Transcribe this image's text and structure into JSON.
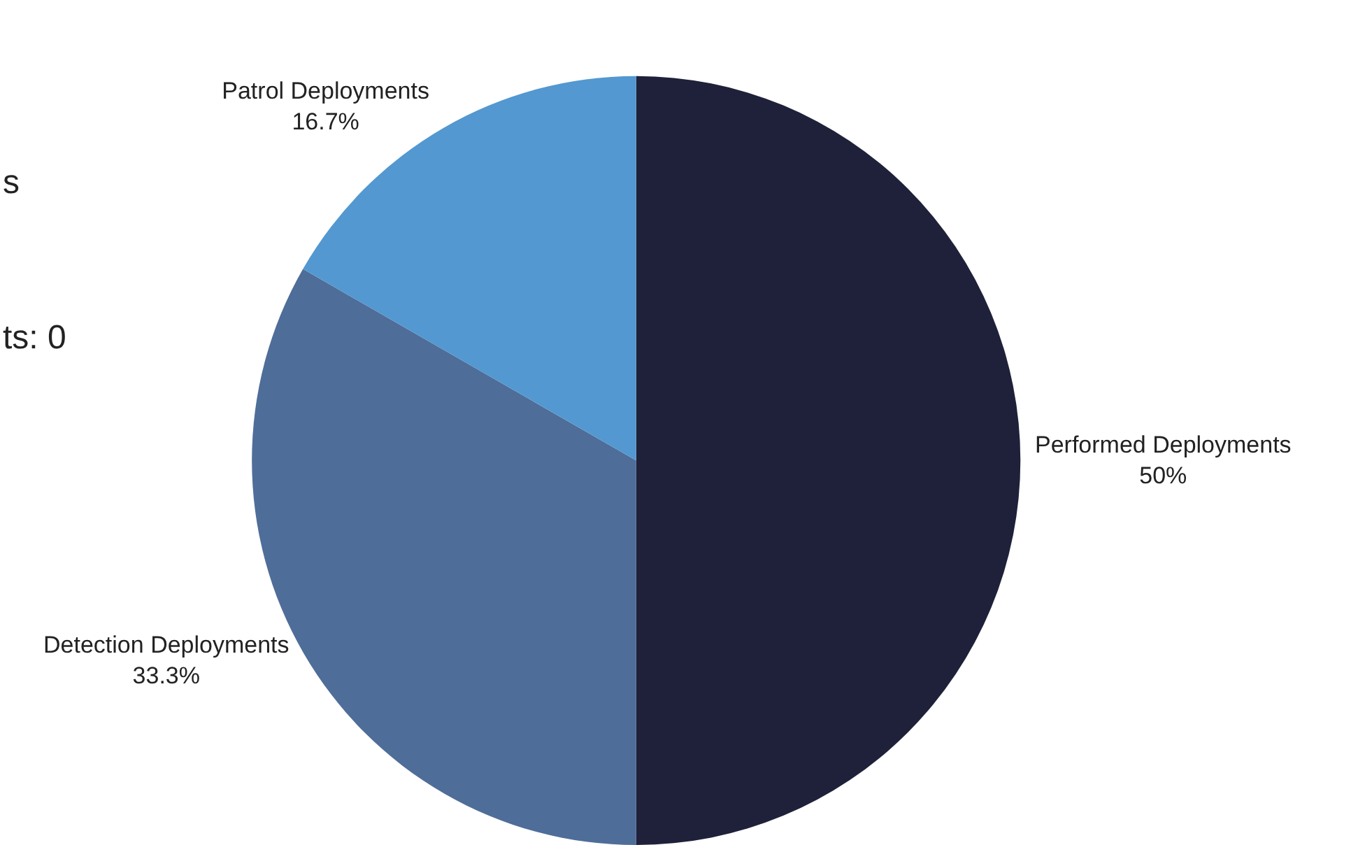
{
  "chart_data": {
    "type": "pie",
    "categories": [
      "Performed Deployments",
      "Detection Deployments",
      "Patrol Deployments"
    ],
    "values": [
      50,
      33.3,
      16.7
    ],
    "colors": [
      "#1e2139",
      "#4f6d99",
      "#5398d0"
    ],
    "value_labels": [
      "50%",
      "33.3%",
      "16.7%"
    ],
    "annotations": [
      "s",
      "ts: 0"
    ],
    "legend": false
  }
}
